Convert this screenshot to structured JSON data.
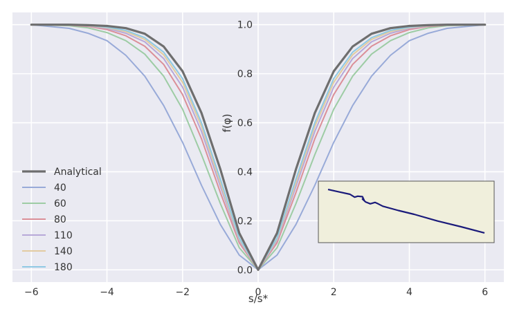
{
  "chart_data": {
    "type": "line",
    "xlabel": "s/s*",
    "ylabel": "f(φ)",
    "xlim": [
      -6.5,
      6.5
    ],
    "ylim": [
      -0.05,
      1.05
    ],
    "xticks": [
      -6,
      -4,
      -2,
      0,
      2,
      4,
      6
    ],
    "xtick_labels": [
      "−6",
      "−4",
      "−2",
      "0",
      "2",
      "4",
      "6"
    ],
    "yticks": [
      0.0,
      0.2,
      0.4,
      0.6,
      0.8,
      1.0
    ],
    "ytick_labels": [
      "0.0",
      "0.2",
      "0.4",
      "0.6",
      "0.8",
      "1.0"
    ],
    "grid": true,
    "legend_position": "lower-left",
    "x": [
      -6,
      -5,
      -4.5,
      -4,
      -3.5,
      -3,
      -2.5,
      -2,
      -1.5,
      -1,
      -0.5,
      0,
      0.5,
      1,
      1.5,
      2,
      2.5,
      3,
      3.5,
      4,
      4.5,
      5,
      6
    ],
    "series": [
      {
        "name": "Analytical",
        "color": "#6e6e6e",
        "width": 3.2,
        "values": [
          1.0,
          1.0,
          0.998,
          0.995,
          0.986,
          0.963,
          0.911,
          0.81,
          0.64,
          0.41,
          0.15,
          0.0,
          0.15,
          0.41,
          0.64,
          0.81,
          0.911,
          0.963,
          0.986,
          0.995,
          0.998,
          1.0,
          1.0
        ]
      },
      {
        "name": "180",
        "color": "#8ec9e3",
        "width": 2,
        "values": [
          1.0,
          0.999,
          0.997,
          0.99,
          0.977,
          0.947,
          0.888,
          0.78,
          0.6,
          0.37,
          0.13,
          0.0,
          0.13,
          0.37,
          0.6,
          0.78,
          0.888,
          0.947,
          0.977,
          0.99,
          0.997,
          0.999,
          1.0
        ]
      },
      {
        "name": "140",
        "color": "#e2cba0",
        "width": 2,
        "values": [
          1.0,
          0.999,
          0.996,
          0.988,
          0.972,
          0.94,
          0.877,
          0.765,
          0.585,
          0.355,
          0.125,
          0.0,
          0.125,
          0.355,
          0.585,
          0.765,
          0.877,
          0.94,
          0.972,
          0.988,
          0.996,
          0.999,
          1.0
        ]
      },
      {
        "name": "110",
        "color": "#b7a8d8",
        "width": 2,
        "values": [
          1.0,
          0.999,
          0.995,
          0.985,
          0.965,
          0.93,
          0.862,
          0.745,
          0.565,
          0.34,
          0.12,
          0.0,
          0.12,
          0.34,
          0.565,
          0.745,
          0.862,
          0.93,
          0.965,
          0.985,
          0.995,
          0.999,
          1.0
        ]
      },
      {
        "name": "80",
        "color": "#db8f98",
        "width": 2,
        "values": [
          1.0,
          0.998,
          0.993,
          0.98,
          0.955,
          0.912,
          0.838,
          0.715,
          0.535,
          0.315,
          0.11,
          0.0,
          0.11,
          0.315,
          0.535,
          0.715,
          0.838,
          0.912,
          0.955,
          0.98,
          0.993,
          0.998,
          1.0
        ]
      },
      {
        "name": "60",
        "color": "#9dcca4",
        "width": 2,
        "values": [
          1.0,
          0.996,
          0.987,
          0.968,
          0.935,
          0.88,
          0.79,
          0.655,
          0.47,
          0.27,
          0.09,
          0.0,
          0.09,
          0.27,
          0.47,
          0.655,
          0.79,
          0.88,
          0.935,
          0.968,
          0.987,
          0.996,
          1.0
        ]
      },
      {
        "name": "40",
        "color": "#98aad8",
        "width": 2,
        "values": [
          1.0,
          0.985,
          0.965,
          0.935,
          0.875,
          0.79,
          0.67,
          0.52,
          0.345,
          0.185,
          0.06,
          0.0,
          0.06,
          0.185,
          0.345,
          0.52,
          0.67,
          0.79,
          0.875,
          0.935,
          0.965,
          0.985,
          1.0
        ]
      }
    ],
    "legend_order": [
      "Analytical",
      "40",
      "60",
      "80",
      "110",
      "140",
      "180"
    ],
    "inset": {
      "background": "#f0efdc",
      "line_color": "#1a1a7a",
      "path_points": [
        [
          0,
          0.06
        ],
        [
          0.07,
          0.11
        ],
        [
          0.14,
          0.16
        ],
        [
          0.17,
          0.22
        ],
        [
          0.19,
          0.2
        ],
        [
          0.22,
          0.21
        ],
        [
          0.23,
          0.28
        ],
        [
          0.22,
          0.26
        ],
        [
          0.24,
          0.32
        ],
        [
          0.27,
          0.36
        ],
        [
          0.3,
          0.33
        ],
        [
          0.32,
          0.36
        ],
        [
          0.35,
          0.41
        ],
        [
          0.45,
          0.5
        ],
        [
          0.55,
          0.58
        ],
        [
          0.7,
          0.72
        ],
        [
          0.85,
          0.84
        ],
        [
          1.0,
          0.97
        ]
      ]
    }
  }
}
